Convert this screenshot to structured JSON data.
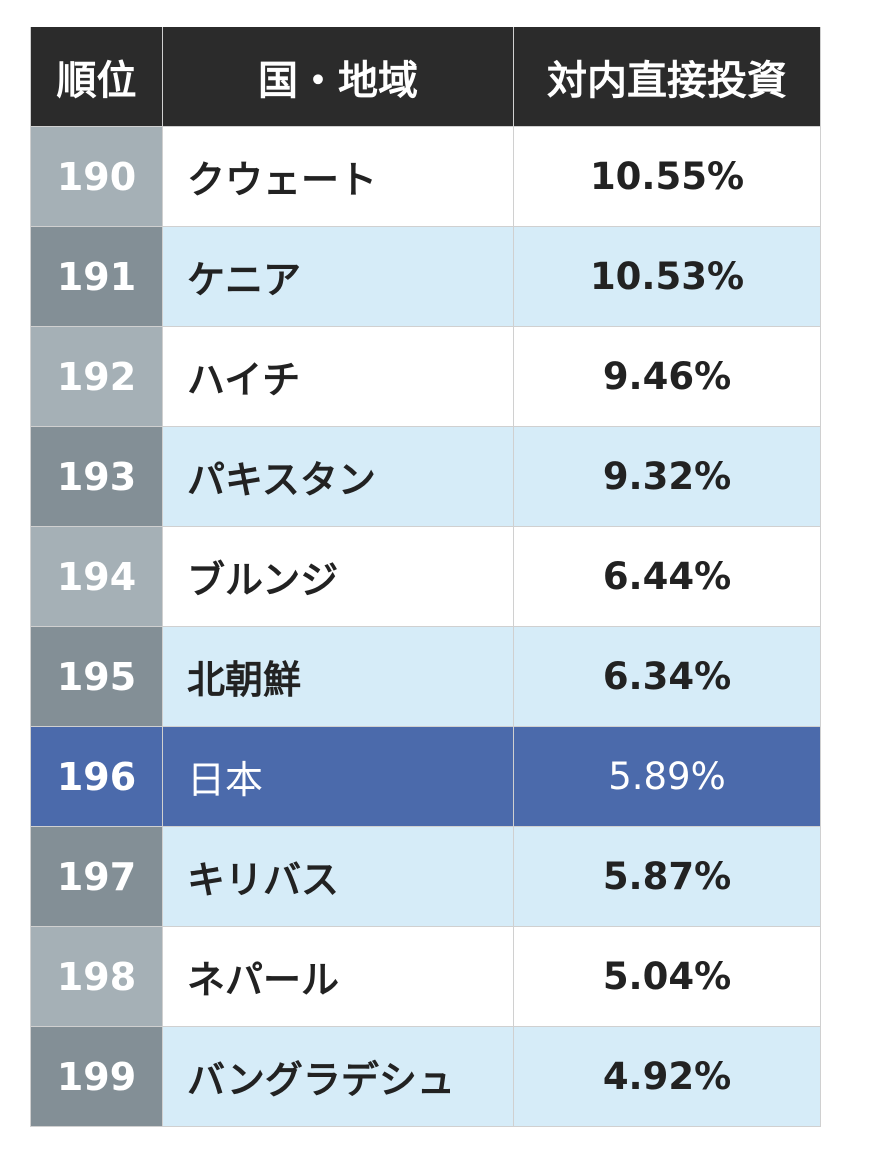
{
  "chart_data": {
    "type": "table",
    "columns": [
      "順位",
      "国・地域",
      "対内直接投資"
    ],
    "rows": [
      {
        "rank": "190",
        "country": "クウェート",
        "value": "10.55%"
      },
      {
        "rank": "191",
        "country": "ケニア",
        "value": "10.53%"
      },
      {
        "rank": "192",
        "country": "ハイチ",
        "value": "9.46%"
      },
      {
        "rank": "193",
        "country": "パキスタン",
        "value": "9.32%"
      },
      {
        "rank": "194",
        "country": "ブルンジ",
        "value": "6.44%"
      },
      {
        "rank": "195",
        "country": "北朝鮮",
        "value": "6.34%"
      },
      {
        "rank": "196",
        "country": "日本",
        "value": "5.89%"
      },
      {
        "rank": "197",
        "country": "キリバス",
        "value": "5.87%"
      },
      {
        "rank": "198",
        "country": "ネパール",
        "value": "5.04%"
      },
      {
        "rank": "199",
        "country": "バングラデシュ",
        "value": "4.92%"
      }
    ],
    "highlight_rank": "196",
    "colors": {
      "header_bg": "#2b2b2b",
      "rank_light": "#a5b0b6",
      "rank_dark": "#838f96",
      "row_alt": "#d6ecf8",
      "highlight": "#4b6aab"
    }
  }
}
